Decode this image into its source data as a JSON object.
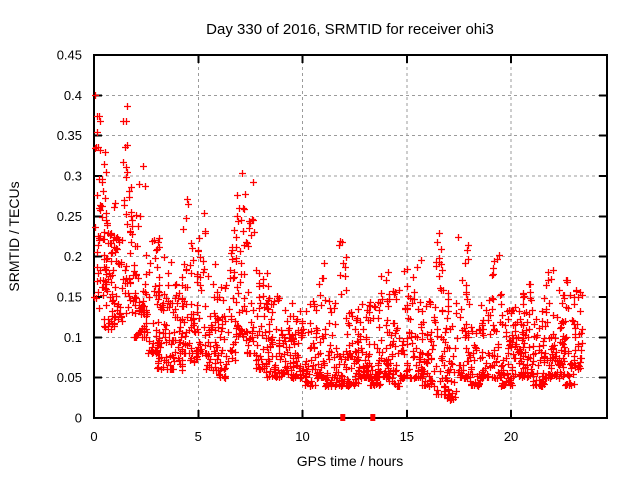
{
  "window": {
    "title": "Day 330 of 2016, SRMTID for receiver ohi3"
  },
  "chart_data": {
    "type": "scatter",
    "title": "Day 330 of 2016, SRMTID for receiver ohi3",
    "xlabel": "GPS time / hours",
    "ylabel": "SRMTID / TECUs",
    "xlim": [
      0,
      24.6
    ],
    "ylim": [
      0,
      0.45
    ],
    "xticks": [
      {
        "v": 0,
        "label": "0"
      },
      {
        "v": 5,
        "label": "5"
      },
      {
        "v": 10,
        "label": "10"
      },
      {
        "v": 15,
        "label": "15"
      },
      {
        "v": 20,
        "label": "20"
      }
    ],
    "yticks": [
      {
        "v": 0,
        "label": "0"
      },
      {
        "v": 0.05,
        "label": "0.05"
      },
      {
        "v": 0.1,
        "label": "0.1"
      },
      {
        "v": 0.15,
        "label": "0.15"
      },
      {
        "v": 0.2,
        "label": "0.2"
      },
      {
        "v": 0.25,
        "label": "0.25"
      },
      {
        "v": 0.3,
        "label": "0.3"
      },
      {
        "v": 0.35,
        "label": "0.35"
      },
      {
        "v": 0.4,
        "label": "0.4"
      },
      {
        "v": 0.45,
        "label": "0.45"
      }
    ],
    "grid": true,
    "legend": "none",
    "colors": {
      "marker": "#ff0000",
      "grid": "#9b9b9b",
      "border": "#000000",
      "text": "#000000",
      "background": "#ffffff"
    },
    "series": [
      {
        "name": "SRMTID",
        "marker": "plus",
        "color": "#ff0000",
        "clusters_format": [
          "x_center_hours",
          "x_halfwidth_hours",
          "point_count",
          "y_min_TECUs",
          "y_max_TECUs",
          "bottom_bias_exponent"
        ],
        "clusters": [
          [
            0.15,
            0.15,
            22,
            0.13,
            0.415,
            1.2
          ],
          [
            0.4,
            0.2,
            30,
            0.15,
            0.335,
            1.5
          ],
          [
            0.75,
            0.3,
            45,
            0.11,
            0.28,
            1.7
          ],
          [
            1.05,
            0.3,
            40,
            0.12,
            0.23,
            1.5
          ],
          [
            1.5,
            0.12,
            16,
            0.14,
            0.405,
            1.4
          ],
          [
            1.8,
            0.25,
            35,
            0.13,
            0.305,
            1.7
          ],
          [
            2.2,
            0.3,
            45,
            0.1,
            0.335,
            2.0
          ],
          [
            2.8,
            0.35,
            50,
            0.08,
            0.225,
            1.8
          ],
          [
            3.4,
            0.4,
            55,
            0.06,
            0.2,
            1.8
          ],
          [
            4.0,
            0.3,
            40,
            0.06,
            0.175,
            1.6
          ],
          [
            4.45,
            0.25,
            35,
            0.08,
            0.29,
            2.2
          ],
          [
            4.8,
            0.2,
            25,
            0.07,
            0.22,
            2.0
          ],
          [
            5.15,
            0.2,
            30,
            0.08,
            0.265,
            2.0
          ],
          [
            5.6,
            0.3,
            40,
            0.06,
            0.2,
            2.0
          ],
          [
            6.1,
            0.3,
            40,
            0.05,
            0.165,
            1.8
          ],
          [
            6.6,
            0.2,
            25,
            0.07,
            0.245,
            2.0
          ],
          [
            7.0,
            0.22,
            42,
            0.1,
            0.315,
            1.6
          ],
          [
            7.5,
            0.25,
            35,
            0.08,
            0.3,
            2.2
          ],
          [
            8.05,
            0.3,
            45,
            0.06,
            0.2,
            2.2
          ],
          [
            8.6,
            0.35,
            50,
            0.05,
            0.155,
            1.8
          ],
          [
            9.2,
            0.35,
            50,
            0.05,
            0.145,
            1.8
          ],
          [
            9.8,
            0.3,
            45,
            0.05,
            0.135,
            1.8
          ],
          [
            10.4,
            0.3,
            45,
            0.04,
            0.15,
            2.0
          ],
          [
            10.9,
            0.2,
            30,
            0.05,
            0.195,
            2.4
          ],
          [
            11.4,
            0.3,
            45,
            0.04,
            0.15,
            2.0
          ],
          [
            11.95,
            0.25,
            40,
            0.04,
            0.225,
            2.6
          ],
          [
            12.45,
            0.3,
            45,
            0.04,
            0.135,
            2.0
          ],
          [
            12.95,
            0.3,
            45,
            0.05,
            0.145,
            2.0
          ],
          [
            13.4,
            0.3,
            40,
            0.04,
            0.155,
            2.0
          ],
          [
            13.9,
            0.25,
            35,
            0.05,
            0.185,
            2.2
          ],
          [
            14.4,
            0.3,
            45,
            0.04,
            0.165,
            2.0
          ],
          [
            14.95,
            0.25,
            40,
            0.05,
            0.21,
            2.4
          ],
          [
            15.5,
            0.25,
            40,
            0.05,
            0.215,
            2.4
          ],
          [
            16.0,
            0.3,
            45,
            0.04,
            0.145,
            2.0
          ],
          [
            16.6,
            0.25,
            40,
            0.03,
            0.23,
            2.4
          ],
          [
            17.1,
            0.3,
            45,
            0.02,
            0.155,
            2.0
          ],
          [
            17.7,
            0.25,
            40,
            0.05,
            0.235,
            2.6
          ],
          [
            18.2,
            0.3,
            45,
            0.04,
            0.145,
            2.0
          ],
          [
            18.8,
            0.3,
            45,
            0.05,
            0.165,
            2.2
          ],
          [
            19.3,
            0.25,
            40,
            0.05,
            0.205,
            2.4
          ],
          [
            19.8,
            0.3,
            45,
            0.04,
            0.145,
            2.0
          ],
          [
            20.3,
            0.3,
            45,
            0.05,
            0.155,
            2.0
          ],
          [
            20.8,
            0.25,
            40,
            0.05,
            0.195,
            2.4
          ],
          [
            21.3,
            0.3,
            45,
            0.04,
            0.15,
            2.0
          ],
          [
            21.8,
            0.25,
            40,
            0.05,
            0.185,
            2.2
          ],
          [
            22.3,
            0.3,
            45,
            0.05,
            0.165,
            2.0
          ],
          [
            22.8,
            0.25,
            40,
            0.04,
            0.175,
            2.0
          ],
          [
            23.2,
            0.2,
            30,
            0.06,
            0.16,
            1.8
          ]
        ]
      },
      {
        "name": "zero-value-squares",
        "marker": "filled-square",
        "color": "#ff0000",
        "points": [
          [
            11.93,
            0
          ],
          [
            13.37,
            0
          ]
        ]
      }
    ]
  }
}
